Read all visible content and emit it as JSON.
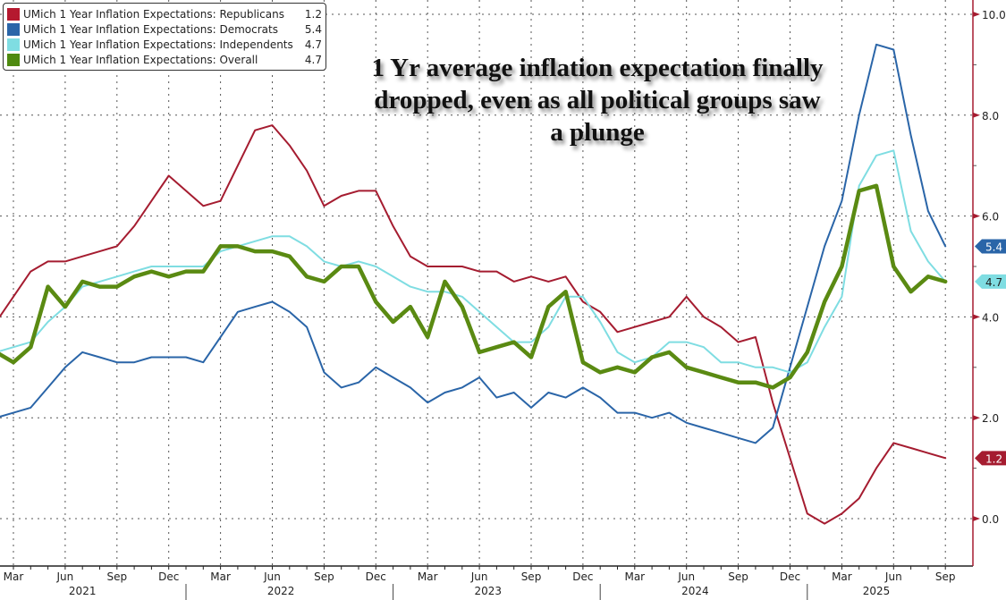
{
  "chart_data": {
    "type": "line",
    "title": "",
    "annotation": "1 Yr average inflation expectation finally dropped, even as all political groups saw a plunge",
    "xlabel": "",
    "ylabel": "",
    "ylim": [
      -1.0,
      10.2
    ],
    "yticks": [
      "0.0",
      "2.0",
      "4.0",
      "6.0",
      "8.0",
      "10.0"
    ],
    "ytick_values": [
      0,
      2,
      4,
      6,
      8,
      10
    ],
    "y_axis_position": "right",
    "grid": true,
    "legend_position": "top-left",
    "x_start": "2021-02",
    "x_end": "2025-09",
    "x_month_ticks": [
      "Mar",
      "Jun",
      "Sep",
      "Dec",
      "Mar",
      "Jun",
      "Sep",
      "Dec",
      "Mar",
      "Jun",
      "Sep",
      "Dec",
      "Mar",
      "Jun",
      "Sep",
      "Dec",
      "Mar",
      "Jun",
      "Sep"
    ],
    "x_year_labels": [
      "2021",
      "2022",
      "2023",
      "2024",
      "2025"
    ],
    "series": [
      {
        "name": "UMich 1 Year Inflation Expectations: Republicans",
        "last_value": "1.2",
        "color": "#a51c30",
        "values": [
          3.9,
          4.4,
          4.9,
          5.1,
          5.1,
          5.2,
          5.3,
          5.4,
          5.8,
          6.3,
          6.8,
          6.5,
          6.2,
          6.3,
          7.0,
          7.7,
          7.8,
          7.4,
          6.9,
          6.2,
          6.4,
          6.5,
          6.5,
          5.8,
          5.2,
          5.0,
          5.0,
          5.0,
          4.9,
          4.9,
          4.7,
          4.8,
          4.7,
          4.8,
          4.3,
          4.1,
          3.7,
          3.8,
          3.9,
          4.0,
          4.4,
          4.0,
          3.8,
          3.5,
          3.6,
          2.3,
          1.2,
          0.1,
          -0.1,
          0.1,
          0.4,
          1.0,
          1.5,
          1.4,
          1.3,
          1.2
        ]
      },
      {
        "name": "UMich 1 Year Inflation Expectations: Democrats",
        "last_value": "5.4",
        "color": "#2a65a8",
        "values": [
          2.0,
          2.1,
          2.2,
          2.6,
          3.0,
          3.3,
          3.2,
          3.1,
          3.1,
          3.2,
          3.2,
          3.2,
          3.1,
          3.6,
          4.1,
          4.2,
          4.3,
          4.1,
          3.8,
          2.9,
          2.6,
          2.7,
          3.0,
          2.8,
          2.6,
          2.3,
          2.5,
          2.6,
          2.8,
          2.4,
          2.5,
          2.2,
          2.5,
          2.4,
          2.6,
          2.4,
          2.1,
          2.1,
          2.0,
          2.1,
          1.9,
          1.8,
          1.7,
          1.6,
          1.5,
          1.8,
          3.0,
          4.2,
          5.4,
          6.3,
          8.0,
          9.4,
          9.3,
          7.6,
          6.1,
          5.4
        ]
      },
      {
        "name": "UMich 1 Year Inflation Expectations: Independents",
        "last_value": "4.7",
        "color": "#7fdde2",
        "values": [
          3.3,
          3.4,
          3.5,
          3.9,
          4.2,
          4.6,
          4.7,
          4.8,
          4.9,
          5.0,
          5.0,
          5.0,
          5.0,
          5.3,
          5.4,
          5.5,
          5.6,
          5.6,
          5.4,
          5.1,
          5.0,
          5.1,
          5.0,
          4.8,
          4.6,
          4.5,
          4.5,
          4.4,
          4.1,
          3.8,
          3.5,
          3.5,
          3.8,
          4.4,
          4.4,
          3.9,
          3.3,
          3.1,
          3.2,
          3.5,
          3.5,
          3.4,
          3.1,
          3.1,
          3.0,
          3.0,
          2.9,
          3.1,
          3.8,
          4.4,
          6.6,
          7.2,
          7.3,
          5.7,
          5.1,
          4.7
        ]
      },
      {
        "name": "UMich 1 Year Inflation Expectations: Overall",
        "last_value": "4.7",
        "color": "#5a8a12",
        "values": [
          3.3,
          3.1,
          3.4,
          4.6,
          4.2,
          4.7,
          4.6,
          4.6,
          4.8,
          4.9,
          4.8,
          4.9,
          4.9,
          5.4,
          5.4,
          5.3,
          5.3,
          5.2,
          4.8,
          4.7,
          5.0,
          5.0,
          4.3,
          3.9,
          4.2,
          3.6,
          4.7,
          4.2,
          3.3,
          3.4,
          3.5,
          3.2,
          4.2,
          4.5,
          3.1,
          2.9,
          3.0,
          2.9,
          3.2,
          3.3,
          3.0,
          2.9,
          2.8,
          2.7,
          2.7,
          2.6,
          2.8,
          3.3,
          4.3,
          5.0,
          6.5,
          6.6,
          5.0,
          4.5,
          4.8,
          4.7
        ]
      }
    ]
  }
}
